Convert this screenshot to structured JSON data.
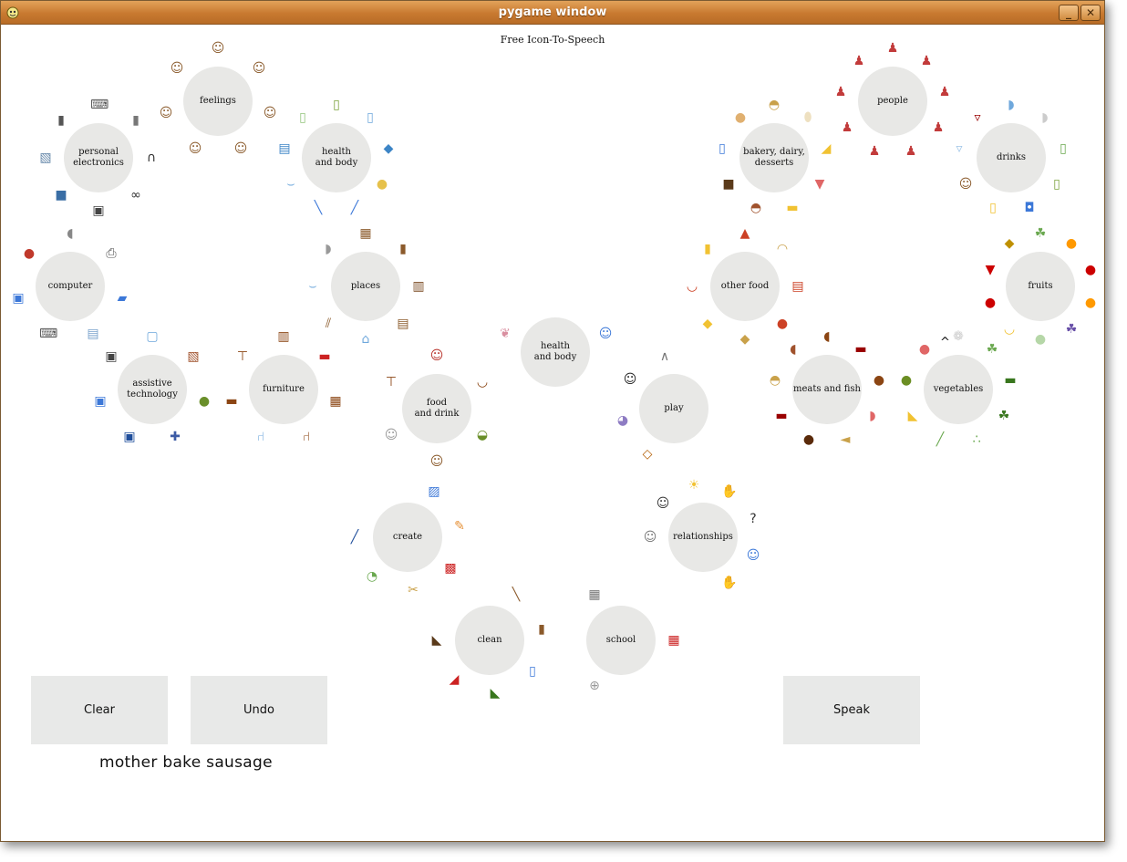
{
  "window": {
    "title": "pygame window",
    "minimize_label": "_",
    "close_label": "✕"
  },
  "app": {
    "heading": "Free Icon-To-Speech"
  },
  "buttons": {
    "clear": "Clear",
    "undo": "Undo",
    "speak": "Speak"
  },
  "sentence": "mother bake sausage",
  "caret": "^",
  "hubs": [
    {
      "id": "feelings",
      "label": "feelings",
      "icons": [
        "person-face-icon",
        "person-face-icon",
        "person-face-icon",
        "person-face-icon",
        "person-face-icon",
        "person-face-icon",
        "person-face-icon"
      ]
    },
    {
      "id": "personal-electronics",
      "label": "personal\nelectronics",
      "icons": [
        "keyboard-icon",
        "remote-icon",
        "headphones-icon",
        "binoculars-icon",
        "camera-icon",
        "tv-icon",
        "photo-icon",
        "speakers-icon"
      ]
    },
    {
      "id": "health-and-body-left",
      "label": "health\nand body",
      "icons": [
        "bottle-icon",
        "fridge-icon",
        "soap-icon",
        "sponge-icon",
        "toothbrush-icon",
        "toothpaste-icon",
        "bath-icon",
        "medicine-icon",
        "lotion-icon"
      ]
    },
    {
      "id": "computer",
      "label": "computer",
      "icons": [
        "mouse-icon",
        "printer-icon",
        "laptop-icon",
        "paper-icon",
        "keyboard-icon",
        "monitor-icon",
        "computer-mouse-icon"
      ]
    },
    {
      "id": "places",
      "label": "places",
      "icons": [
        "store-icon",
        "door-icon",
        "wardrobe-icon",
        "shelf-icon",
        "house-icon",
        "stairs-icon",
        "bath-icon",
        "toilet-icon"
      ]
    },
    {
      "id": "assistive-technology",
      "label": "assistive\ntechnology",
      "icons": [
        "screen-icon",
        "pad-icon",
        "switch-icon",
        "joystick-icon",
        "communicator-icon",
        "device-icon",
        "camera-icon"
      ]
    },
    {
      "id": "furniture",
      "label": "furniture",
      "icons": [
        "cabinet-icon",
        "sofa-icon",
        "dresser-icon",
        "chair-icon",
        "highchair-icon",
        "bed-icon",
        "table-icon"
      ]
    },
    {
      "id": "health-and-body-center",
      "label": "health\nand body",
      "icons": [
        "lungs-icon",
        "doctor-icon"
      ]
    },
    {
      "id": "food-and-drink",
      "label": "food\nand drink",
      "icons": [
        "person-eating-icon",
        "bowl-icon",
        "pot-icon",
        "person-drinking-icon",
        "chef-icon",
        "table-icon"
      ]
    },
    {
      "id": "play",
      "label": "play",
      "icons": [
        "kite-icon",
        "toy-icon",
        "running-icon",
        "swing-icon"
      ]
    },
    {
      "id": "create",
      "label": "create",
      "icons": [
        "paint-icon",
        "pencil-icon",
        "gift-icon",
        "scissors-icon",
        "glue-icon",
        "paintbrush-icon"
      ]
    },
    {
      "id": "relationships",
      "label": "relationships",
      "icons": [
        "people-icon",
        "teacher-icon",
        "weather-icon",
        "handshake-icon",
        "question-icon",
        "worker-icon",
        "hand-icon"
      ]
    },
    {
      "id": "clean",
      "label": "clean",
      "icons": [
        "broom-icon",
        "door-icon",
        "spray-icon",
        "watering-icon",
        "dustpan-icon",
        "boot-icon"
      ]
    },
    {
      "id": "school",
      "label": "school",
      "icons": [
        "calculator-icon",
        "numbers-icon",
        "compass-icon"
      ]
    },
    {
      "id": "bakery-dairy-desserts",
      "label": "bakery, dairy, desserts",
      "icons": [
        "bread-icon",
        "egg-icon",
        "cheese-icon",
        "icecream-icon",
        "butter-icon",
        "cake-icon",
        "chocolate-icon",
        "milk-icon",
        "pie-icon"
      ]
    },
    {
      "id": "people",
      "label": "people",
      "icons": [
        "person-icon",
        "person-icon",
        "person-icon",
        "person-icon",
        "person-icon",
        "person-icon",
        "person-icon",
        "person-icon",
        "person-icon"
      ]
    },
    {
      "id": "drinks",
      "label": "drinks",
      "icons": [
        "kettle-icon",
        "teapot-icon",
        "soda-icon",
        "bottle-icon",
        "cup-icon",
        "juice-icon",
        "person-drinking-icon",
        "glass-icon",
        "wine-icon"
      ]
    },
    {
      "id": "other-food",
      "label": "other food",
      "icons": [
        "pizza-icon",
        "taco-icon",
        "lasagna-icon",
        "pasta-icon",
        "sandwich-icon",
        "chips-icon",
        "soup-icon",
        "fries-icon"
      ]
    },
    {
      "id": "fruits",
      "label": "fruits",
      "icons": [
        "grapes-icon",
        "orange-icon",
        "cherry-icon",
        "orange-icon",
        "grape-icon",
        "pear-icon",
        "banana-icon",
        "apple-icon",
        "strawberry-icon",
        "pineapple-icon"
      ]
    },
    {
      "id": "meats-and-fish",
      "label": "meats and fish",
      "icons": [
        "chicken-icon",
        "sausage-icon",
        "meat-icon",
        "ham-icon",
        "fish-icon",
        "steak-icon",
        "sausage-icon",
        "bread-icon",
        "turkey-icon"
      ]
    },
    {
      "id": "vegetables",
      "label": "vegetables",
      "icons": [
        "cauliflower-icon",
        "lettuce-icon",
        "cucumber-icon",
        "broccoli-icon",
        "peas-icon",
        "beans-icon",
        "pepper-icon",
        "avocado-icon",
        "tomato-icon"
      ]
    }
  ],
  "colors": {
    "hub": "#e8e8e6",
    "button": "#e8e9e8",
    "titlebar": "#c87930"
  }
}
